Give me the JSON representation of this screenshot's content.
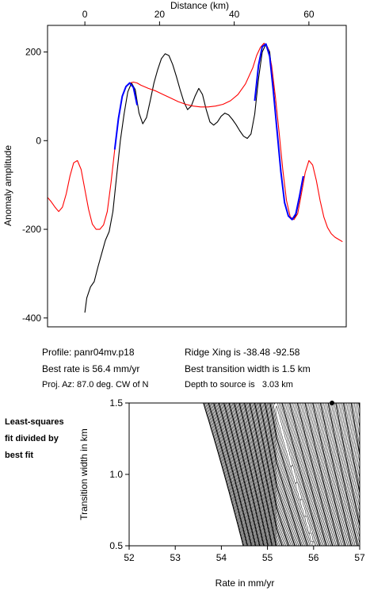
{
  "chart_data": [
    {
      "type": "line",
      "xlabel": "Distance (km)",
      "ylabel": "Anomaly amplitude",
      "xlim": [
        -10,
        70
      ],
      "ylim": [
        -420,
        260
      ],
      "xticks": [
        0,
        20,
        40,
        60
      ],
      "yticks": [
        200,
        0,
        -200,
        -400
      ],
      "grid": false,
      "series": [
        {
          "color": "#000000",
          "points": [
            [
              0,
              -388
            ],
            [
              0.5,
              -355
            ],
            [
              1.5,
              -330
            ],
            [
              2.5,
              -318
            ],
            [
              3.5,
              -285
            ],
            [
              4.5,
              -255
            ],
            [
              5.5,
              -225
            ],
            [
              6.5,
              -205
            ],
            [
              7.5,
              -160
            ],
            [
              8.5,
              -80
            ],
            [
              9.5,
              0
            ],
            [
              10.5,
              60
            ],
            [
              11.5,
              110
            ],
            [
              12.5,
              130
            ],
            [
              13.5,
              115
            ],
            [
              14.5,
              62
            ],
            [
              15.5,
              38
            ],
            [
              16.5,
              52
            ],
            [
              17.5,
              90
            ],
            [
              18.5,
              130
            ],
            [
              19.5,
              160
            ],
            [
              20.5,
              185
            ],
            [
              21.5,
              196
            ],
            [
              22.5,
              192
            ],
            [
              23.5,
              172
            ],
            [
              24.5,
              145
            ],
            [
              25.5,
              115
            ],
            [
              26.5,
              88
            ],
            [
              27.5,
              70
            ],
            [
              28.5,
              78
            ],
            [
              29.5,
              100
            ],
            [
              30.5,
              118
            ],
            [
              31.5,
              104
            ],
            [
              32.5,
              70
            ],
            [
              33.5,
              42
            ],
            [
              34.5,
              35
            ],
            [
              35.5,
              42
            ],
            [
              36.5,
              55
            ],
            [
              37.5,
              62
            ],
            [
              38.5,
              58
            ],
            [
              39.5,
              48
            ],
            [
              40.5,
              36
            ],
            [
              41.5,
              22
            ],
            [
              42.5,
              10
            ],
            [
              43.5,
              5
            ],
            [
              44.5,
              15
            ],
            [
              45.5,
              60
            ],
            [
              46.5,
              140
            ],
            [
              47.5,
              200
            ],
            [
              48.5,
              218
            ],
            [
              49.5,
              200
            ],
            [
              50.5,
              120
            ],
            [
              51.5,
              20
            ],
            [
              52.5,
              -70
            ],
            [
              53.5,
              -140
            ],
            [
              54.5,
              -170
            ],
            [
              55.5,
              -178
            ],
            [
              56.5,
              -170
            ],
            [
              57.5,
              -130
            ],
            [
              58.5,
              -82
            ]
          ]
        },
        {
          "color": "#ff0000",
          "points": [
            [
              -10,
              -128
            ],
            [
              -9,
              -138
            ],
            [
              -8,
              -150
            ],
            [
              -7,
              -160
            ],
            [
              -6,
              -150
            ],
            [
              -5,
              -120
            ],
            [
              -4,
              -80
            ],
            [
              -3,
              -50
            ],
            [
              -2,
              -45
            ],
            [
              -1,
              -65
            ],
            [
              0,
              -110
            ],
            [
              1,
              -155
            ],
            [
              2,
              -188
            ],
            [
              3,
              -200
            ],
            [
              4,
              -200
            ],
            [
              5,
              -190
            ],
            [
              6,
              -160
            ],
            [
              7,
              -95
            ],
            [
              8,
              -20
            ],
            [
              9,
              50
            ],
            [
              10,
              100
            ],
            [
              11,
              122
            ],
            [
              12,
              130
            ],
            [
              13,
              132
            ],
            [
              14,
              130
            ],
            [
              15,
              125
            ],
            [
              17,
              118
            ],
            [
              19,
              112
            ],
            [
              21,
              104
            ],
            [
              23,
              96
            ],
            [
              25,
              88
            ],
            [
              27,
              82
            ],
            [
              29,
              78
            ],
            [
              31,
              76
            ],
            [
              33,
              76
            ],
            [
              35,
              78
            ],
            [
              37,
              82
            ],
            [
              39,
              90
            ],
            [
              41,
              104
            ],
            [
              43,
              128
            ],
            [
              45,
              165
            ],
            [
              46,
              192
            ],
            [
              47,
              210
            ],
            [
              48,
              220
            ],
            [
              49,
              210
            ],
            [
              50,
              170
            ],
            [
              51,
              100
            ],
            [
              52,
              20
            ],
            [
              53,
              -65
            ],
            [
              54,
              -135
            ],
            [
              55,
              -172
            ],
            [
              56,
              -178
            ],
            [
              57,
              -165
            ],
            [
              58,
              -120
            ],
            [
              59,
              -72
            ],
            [
              60,
              -45
            ],
            [
              61,
              -55
            ],
            [
              62,
              -90
            ],
            [
              63,
              -135
            ],
            [
              64,
              -172
            ],
            [
              65,
              -196
            ],
            [
              66,
              -210
            ],
            [
              67,
              -218
            ],
            [
              68,
              -223
            ],
            [
              69,
              -228
            ]
          ]
        },
        {
          "color": "#0000ff",
          "points": [
            [
              8,
              -20
            ],
            [
              9,
              50
            ],
            [
              10,
              100
            ],
            [
              11,
              122
            ],
            [
              12,
              130
            ],
            [
              13,
              120
            ],
            [
              14,
              80
            ]
          ]
        },
        {
          "color": "#0000ff",
          "points": [
            [
              45.5,
              90
            ],
            [
              46.5,
              170
            ],
            [
              47.5,
              212
            ],
            [
              48.5,
              218
            ],
            [
              49.5,
              190
            ],
            [
              50.5,
              110
            ],
            [
              51.5,
              20
            ],
            [
              52.5,
              -70
            ],
            [
              53.5,
              -140
            ],
            [
              54.5,
              -170
            ],
            [
              55.5,
              -178
            ],
            [
              56.5,
              -165
            ],
            [
              57.5,
              -125
            ],
            [
              58.5,
              -80
            ]
          ]
        }
      ]
    },
    {
      "type": "contour",
      "xlabel": "Rate in mm/yr",
      "ylabel": "Transition width in km",
      "xlim": [
        52,
        57
      ],
      "ylim": [
        0.5,
        1.5
      ],
      "xticks": [
        "52",
        "53",
        "54",
        "55",
        "56",
        "57"
      ],
      "yticks": [
        "0.5",
        "1.0",
        "1.5"
      ],
      "best_fit_point": [
        56.4,
        1.5
      ]
    }
  ],
  "info": {
    "profile": "Profile: panr04mv.p18",
    "ridge_xing": "Ridge Xing is -38.48 -92.58",
    "best_rate": "Best rate is 56.4 mm/yr",
    "best_width": "Best transition width is 1.5 km",
    "proj_az": "Proj. Az: 87.0 deg. CW of N",
    "depth": "Depth to source is   3.03 km"
  },
  "side_label": [
    "Least-squares",
    "fit divided by",
    "best fit"
  ]
}
